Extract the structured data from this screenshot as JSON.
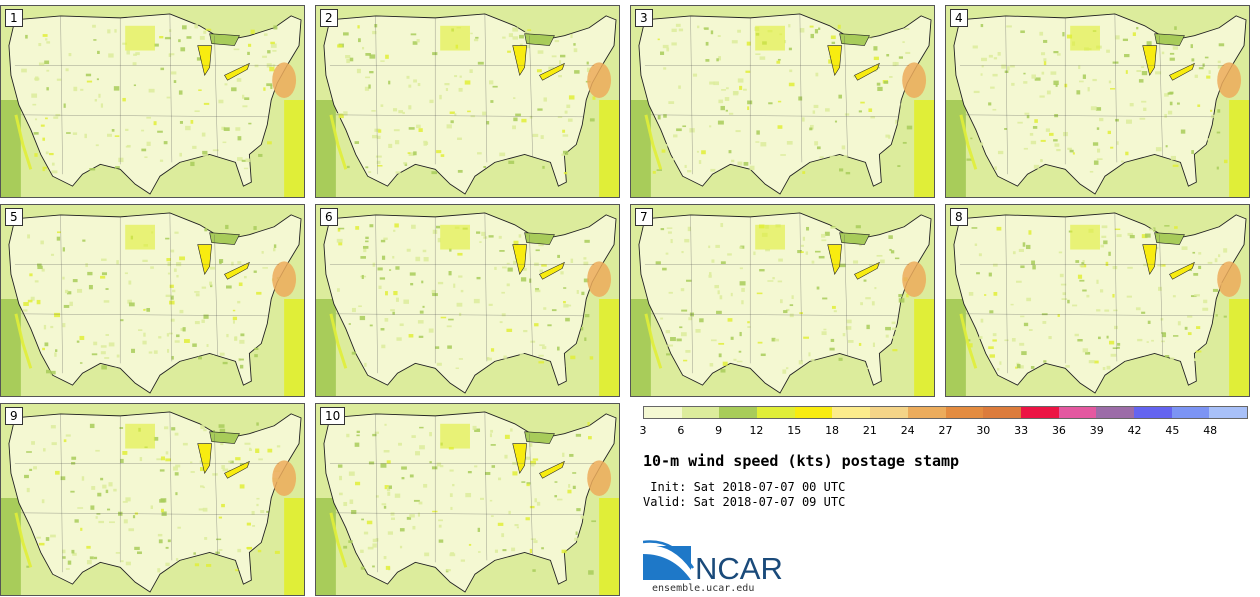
{
  "stamps": [
    {
      "label": "1"
    },
    {
      "label": "2"
    },
    {
      "label": "3"
    },
    {
      "label": "4"
    },
    {
      "label": "5"
    },
    {
      "label": "6"
    },
    {
      "label": "7"
    },
    {
      "label": "8"
    },
    {
      "label": "9"
    },
    {
      "label": "10"
    }
  ],
  "colorbar": {
    "colors": [
      "#f4f8d2",
      "#dcec9c",
      "#a8cc5a",
      "#e0ee38",
      "#f8ec10",
      "#fcec8c",
      "#f4d488",
      "#ecac5c",
      "#e48c40",
      "#dc7c3c",
      "#ec1444",
      "#e458a0",
      "#9c6ca8",
      "#6464f0",
      "#7c94f4",
      "#a8c0f8"
    ],
    "ticks": [
      "3",
      "6",
      "9",
      "12",
      "15",
      "18",
      "21",
      "24",
      "27",
      "30",
      "33",
      "36",
      "39",
      "42",
      "45",
      "48"
    ]
  },
  "title": "10-m wind speed (kts) postage stamp",
  "init": " Init: Sat 2018-07-07 00 UTC",
  "valid": "Valid: Sat 2018-07-07 09 UTC",
  "logo": {
    "text": "NCAR",
    "url": "ensemble.ucar.edu",
    "color": "#1a4a7a",
    "swoosh": "#1e78c8"
  }
}
